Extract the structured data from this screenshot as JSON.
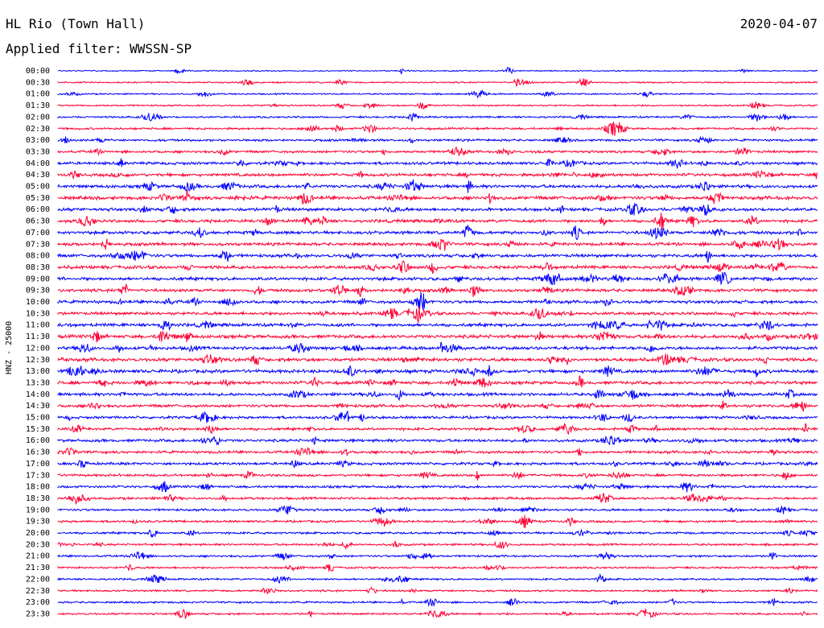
{
  "header": {
    "station": "HL Rio (Town Hall)",
    "date": "2020-04-07",
    "filter": "Applied filter: WWSSN-SP"
  },
  "chart_data": {
    "type": "line",
    "title": "HL Rio (Town Hall)",
    "ylabel": "HNZ - 25000",
    "xlabel": "",
    "series_colors": [
      "#0000ff",
      "#ff0033"
    ],
    "rows": [
      "00:00",
      "00:30",
      "01:00",
      "01:30",
      "02:00",
      "02:30",
      "03:00",
      "03:30",
      "04:00",
      "04:30",
      "05:00",
      "05:30",
      "06:00",
      "06:30",
      "07:00",
      "07:30",
      "08:00",
      "08:30",
      "09:00",
      "09:30",
      "10:00",
      "10:30",
      "11:00",
      "11:30",
      "12:00",
      "12:30",
      "13:00",
      "13:30",
      "14:00",
      "14:30",
      "15:00",
      "15:30",
      "16:00",
      "16:30",
      "17:00",
      "17:30",
      "18:00",
      "18:30",
      "19:00",
      "19:30",
      "20:00",
      "20:30",
      "21:00",
      "21:30",
      "22:00",
      "22:30",
      "23:00",
      "23:30"
    ],
    "activity_level": [
      0.12,
      0.18,
      0.2,
      0.22,
      0.3,
      0.35,
      0.4,
      0.45,
      0.55,
      0.6,
      0.65,
      0.7,
      0.65,
      0.6,
      0.62,
      0.6,
      0.62,
      0.65,
      0.65,
      0.6,
      0.6,
      0.6,
      0.65,
      0.7,
      0.65,
      0.7,
      0.7,
      0.65,
      0.6,
      0.55,
      0.5,
      0.5,
      0.55,
      0.5,
      0.5,
      0.45,
      0.45,
      0.45,
      0.4,
      0.4,
      0.38,
      0.35,
      0.35,
      0.32,
      0.3,
      0.3,
      0.3,
      0.32
    ]
  }
}
